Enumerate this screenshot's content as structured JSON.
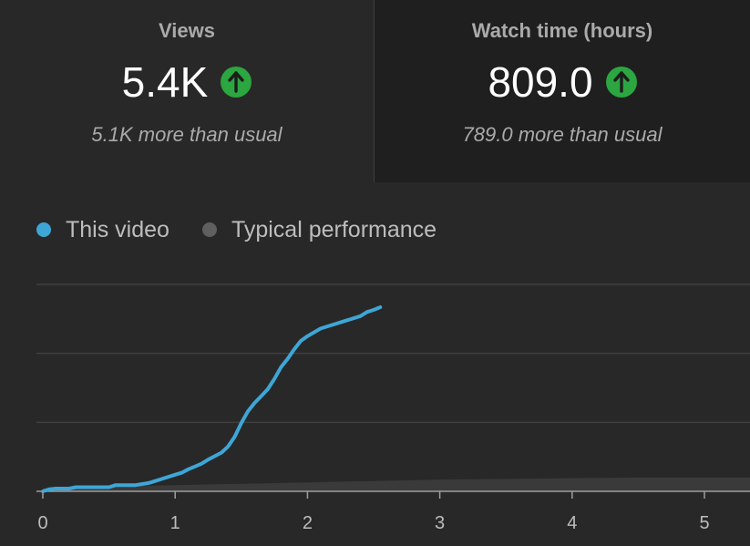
{
  "metrics": {
    "views": {
      "title": "Views",
      "value": "5.4K",
      "trend_icon": "arrow-up-icon",
      "subtext": "5.1K more than usual"
    },
    "watch_time": {
      "title": "Watch time (hours)",
      "value": "809.0",
      "trend_icon": "arrow-up-icon",
      "subtext": "789.0 more than usual"
    }
  },
  "colors": {
    "this_video": "#3ea6d6",
    "typical": "#5f5f5f",
    "typical_band": "#3a3a3a",
    "trend_up": "#2ba640",
    "gridline": "#3f3f3f",
    "axis": "#9e9e9e"
  },
  "chart_data": {
    "type": "line",
    "title": "",
    "xlabel": "",
    "ylabel": "",
    "xlim": [
      0,
      5.35
    ],
    "ylim": [
      0,
      3.0
    ],
    "x_ticks": [
      0,
      1,
      2,
      3,
      4,
      5
    ],
    "y_gridlines": [
      1,
      2,
      3
    ],
    "legend": {
      "position": "top-left",
      "entries": [
        "This video",
        "Typical performance"
      ]
    },
    "series": [
      {
        "name": "This video",
        "x": [
          0,
          0.05,
          0.1,
          0.2,
          0.25,
          0.35,
          0.45,
          0.5,
          0.55,
          0.6,
          0.7,
          0.8,
          0.85,
          0.9,
          1.0,
          1.05,
          1.1,
          1.15,
          1.2,
          1.25,
          1.3,
          1.35,
          1.4,
          1.45,
          1.5,
          1.55,
          1.6,
          1.65,
          1.7,
          1.75,
          1.8,
          1.85,
          1.9,
          1.95,
          2.0,
          2.1,
          2.2,
          2.3,
          2.4,
          2.45,
          2.5,
          2.55
        ],
        "y": [
          0.0,
          0.03,
          0.04,
          0.04,
          0.06,
          0.06,
          0.06,
          0.06,
          0.09,
          0.09,
          0.09,
          0.12,
          0.15,
          0.18,
          0.24,
          0.27,
          0.32,
          0.36,
          0.4,
          0.46,
          0.51,
          0.56,
          0.65,
          0.79,
          0.99,
          1.16,
          1.28,
          1.38,
          1.48,
          1.63,
          1.8,
          1.92,
          2.06,
          2.18,
          2.25,
          2.36,
          2.42,
          2.48,
          2.54,
          2.6,
          2.63,
          2.67
        ]
      },
      {
        "name": "Typical performance",
        "x": [
          0,
          0.5,
          1.0,
          1.5,
          2.0,
          2.5,
          3.0,
          3.5,
          4.0,
          4.5,
          5.0,
          5.35
        ],
        "y_low": [
          0.0,
          0.0,
          0.0,
          0.0,
          0.0,
          0.0,
          0.0,
          0.0,
          0.0,
          0.0,
          0.0,
          0.0
        ],
        "y_high": [
          0.04,
          0.07,
          0.09,
          0.11,
          0.13,
          0.15,
          0.17,
          0.18,
          0.19,
          0.2,
          0.2,
          0.2
        ]
      }
    ]
  }
}
